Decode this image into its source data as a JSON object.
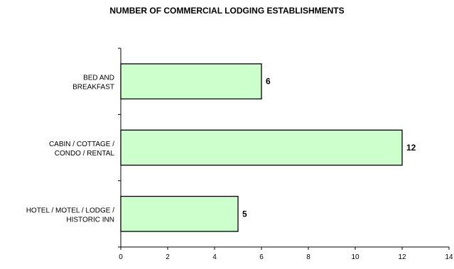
{
  "chart_data": {
    "type": "bar",
    "orientation": "horizontal",
    "title": "NUMBER OF COMMERCIAL LODGING ESTABLISHMENTS",
    "categories": [
      [
        "BED AND",
        "BREAKFAST"
      ],
      [
        "CABIN / COTTAGE /",
        "CONDO / RENTAL"
      ],
      [
        "HOTEL / MOTEL / LODGE /",
        "HISTORIC INN"
      ]
    ],
    "values": [
      6,
      12,
      5
    ],
    "xlim": [
      0,
      14
    ],
    "xticks": [
      0,
      2,
      4,
      6,
      8,
      10,
      12,
      14
    ],
    "xlabel": "",
    "ylabel": "",
    "grid": false,
    "bar_color": "#ccffcc",
    "bar_stroke": "#000000"
  }
}
